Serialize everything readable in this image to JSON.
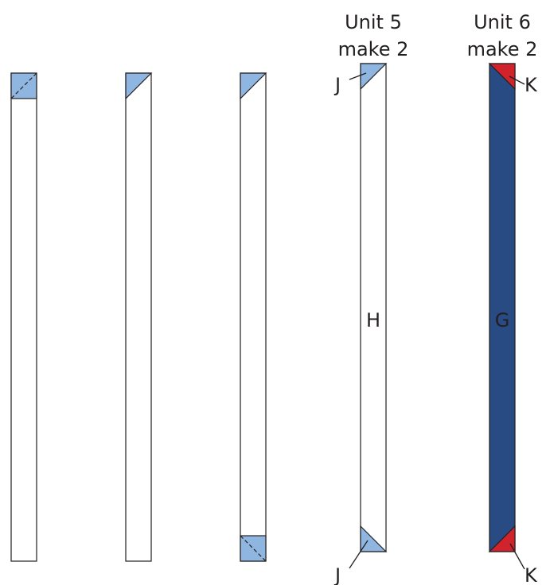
{
  "units": [
    {
      "heading": "Unit 5",
      "quantity": "make 2"
    },
    {
      "heading": "Unit 6",
      "quantity": "make 2"
    }
  ],
  "piece_labels": {
    "j_top": "J",
    "j_bottom": "J",
    "h": "H",
    "k_top": "K",
    "k_bottom": "K",
    "g": "G"
  },
  "colors": {
    "outline": "#231f20",
    "light_blue": "#8fb6e0",
    "navy": "#294b84",
    "red": "#d1232c",
    "strip_white": "#ffffff",
    "label_on_navy": "#ffffff"
  }
}
